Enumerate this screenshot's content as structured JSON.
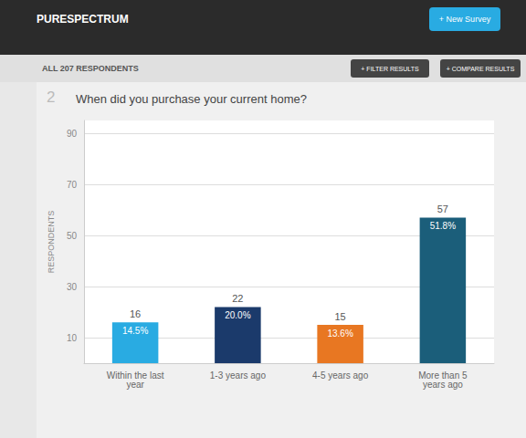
{
  "chart_data": {
    "type": "bar",
    "title": "When did you purchase your current home?",
    "annotations": [
      "PURESPECTRUM",
      "+ New Survey",
      "ALL 207 RESPONDENTS",
      "+ FILTER RESULTS",
      "+ COMPARE RESULTS",
      "2"
    ],
    "ylabel": "RESPONDENTS",
    "categories": [
      "Within the last\nyear",
      "1-3 years ago",
      "4-5 years ago",
      "More than 5\nyears ago"
    ],
    "values": [
      16,
      22,
      15,
      57
    ],
    "percentages": [
      {
        "value": 14.5,
        "label": "14.5%"
      },
      {
        "value": 20.0,
        "label": "20.0%"
      },
      {
        "value": 13.6,
        "label": "13.6%"
      },
      {
        "value": 51.8,
        "label": "51.8%"
      }
    ],
    "colors": [
      "#29ABE2",
      "#1B3A6B",
      "#E87722",
      "#1B5E7A"
    ],
    "ylim": [
      0,
      95
    ],
    "yticks": [
      10,
      30,
      50,
      70,
      90
    ],
    "grid": true,
    "data_labels": true
  }
}
